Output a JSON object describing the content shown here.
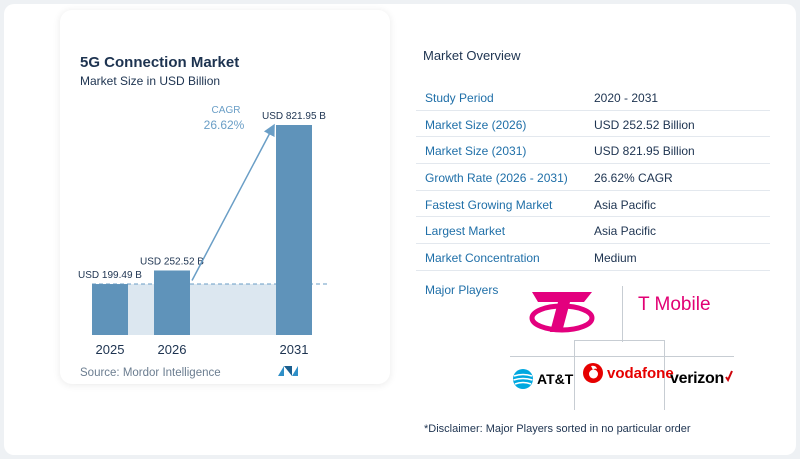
{
  "chart_data": {
    "type": "bar",
    "title": "5G Connection Market",
    "subtitle": "Market Size in USD Billion",
    "categories": [
      "2025",
      "2026",
      "2031"
    ],
    "values": [
      199.49,
      252.52,
      821.95
    ],
    "value_labels": [
      "USD 199.49 B",
      "USD 252.52 B",
      "USD 821.95 B"
    ],
    "cagr_label": "CAGR",
    "cagr_value": "26.62%",
    "bar_color": "#5f93ba",
    "xlabel": "",
    "ylabel": ""
  },
  "source": "Source:  Mordor Intelligence",
  "overview": {
    "title": "Market Overview",
    "rows": [
      {
        "key": "Study Period",
        "value": "2020 - 2031"
      },
      {
        "key": "Market Size (2026)",
        "value": "USD 252.52 Billion"
      },
      {
        "key": "Market Size (2031)",
        "value": "USD 821.95 Billion"
      },
      {
        "key": "Growth Rate (2026 - 2031)",
        "value": "26.62% CAGR"
      },
      {
        "key": "Fastest Growing Market",
        "value": "Asia Pacific"
      },
      {
        "key": "Largest Market",
        "value": "Asia Pacific"
      },
      {
        "key": "Market Concentration",
        "value": "Medium"
      }
    ]
  },
  "players": {
    "label": "Major Players",
    "logos": {
      "tmobile": "T Mobile",
      "att": "AT&T",
      "vodafone": "vodafone",
      "verizon": "verizon"
    }
  },
  "disclaimer": "*Disclaimer: Major Players sorted in no particular order",
  "colors": {
    "accent": "#1f6fa8",
    "text": "#1d3350",
    "telstra": "#e3007e",
    "tmobile": "#e20074",
    "vodafone": "#e60000"
  }
}
